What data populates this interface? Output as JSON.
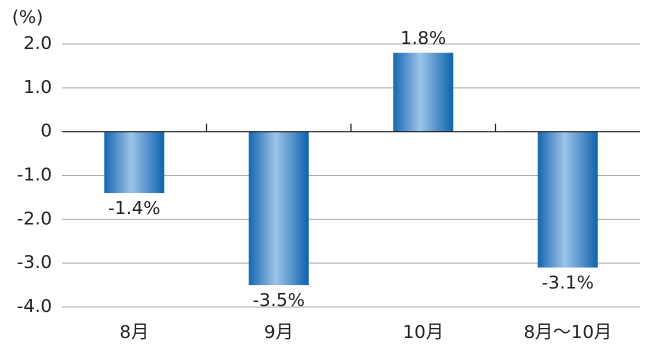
{
  "chart_data": {
    "type": "bar",
    "y_unit": "(%)",
    "categories": [
      "8月",
      "9月",
      "10月",
      "8月～10月"
    ],
    "values": [
      -1.4,
      -3.5,
      1.8,
      -3.1
    ],
    "value_labels": [
      "-1.4%",
      "-3.5%",
      "1.8%",
      "-3.1%"
    ],
    "color": "#1a73be",
    "ylim": [
      -4.0,
      2.0
    ],
    "yticks": [
      {
        "value": 2.0,
        "label": "2.0"
      },
      {
        "value": 1.0,
        "label": "1.0"
      },
      0,
      {
        "value": -1.0,
        "label": "-1.0"
      },
      {
        "value": -2.0,
        "label": "-2.0"
      },
      {
        "value": -3.0,
        "label": "-3.0"
      },
      {
        "value": -4.0,
        "label": "-4.0"
      }
    ],
    "grid": true
  }
}
